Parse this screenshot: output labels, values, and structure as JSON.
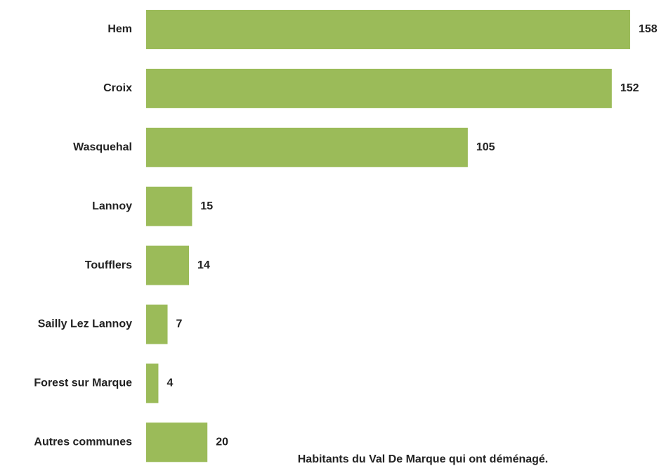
{
  "chart_data": {
    "type": "hbar",
    "title": "Habitants du Val De Marque qui ont déménagé.",
    "categories": [
      "Hem",
      "Croix",
      "Wasquehal",
      "Lannoy",
      "Toufflers",
      "Sailly Lez Lannoy",
      "Forest sur Marque",
      "Autres communes"
    ],
    "values": [
      158,
      152,
      105,
      15,
      14,
      7,
      4,
      20
    ],
    "color": "#9bbb59"
  }
}
